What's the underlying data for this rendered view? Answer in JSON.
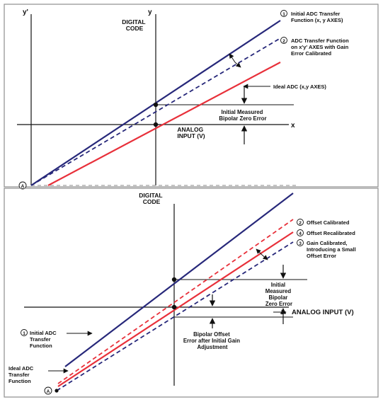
{
  "colors": {
    "blue": "#27287a",
    "red": "#e8303a",
    "black": "#111111",
    "gray": "#9a9a9a",
    "frame": "#8e8e8e"
  },
  "top": {
    "y_prime": "y'",
    "y": "y",
    "x": "x",
    "digital_code": [
      "DIGITAL",
      "CODE"
    ],
    "analog_input": [
      "ANALOG",
      "INPUT (V)"
    ],
    "label1_num": "1",
    "label1": [
      "Initial ADC Transfer",
      "Function   (x, y AXES)"
    ],
    "label2_num": "2",
    "label2": [
      "ADC Transfer Function",
      "on x'y' AXES with Gain",
      "Error Calibrated"
    ],
    "ideal": "Ideal ADC (x,y AXES)",
    "bipolar_zero": [
      "Initial Measured",
      "Bipolar Zero Error"
    ],
    "origin": "A"
  },
  "bottom": {
    "digital_code": [
      "DIGITAL",
      "CODE"
    ],
    "analog_input": "ANALOG INPUT (V)",
    "label2_num": "2",
    "label2": "Offset Calibrated",
    "label4_num": "4",
    "label4": "Offset Recalibrated",
    "label3_num": "3",
    "label3": [
      "Gain Calibrated,",
      "Introducing a Small",
      "Offset Error"
    ],
    "measured": [
      "Initial",
      "Measured",
      "Bipolar",
      "Zero Error"
    ],
    "bipolar_offset": [
      "Bipolar Offset",
      "Error after Initial Gain",
      "Adjustment"
    ],
    "label1_num": "1",
    "label1": [
      "Initial ADC",
      "Transfer",
      "Function"
    ],
    "ideal": [
      "Ideal ADC",
      "Transfer",
      "Function"
    ],
    "origin": "A"
  }
}
